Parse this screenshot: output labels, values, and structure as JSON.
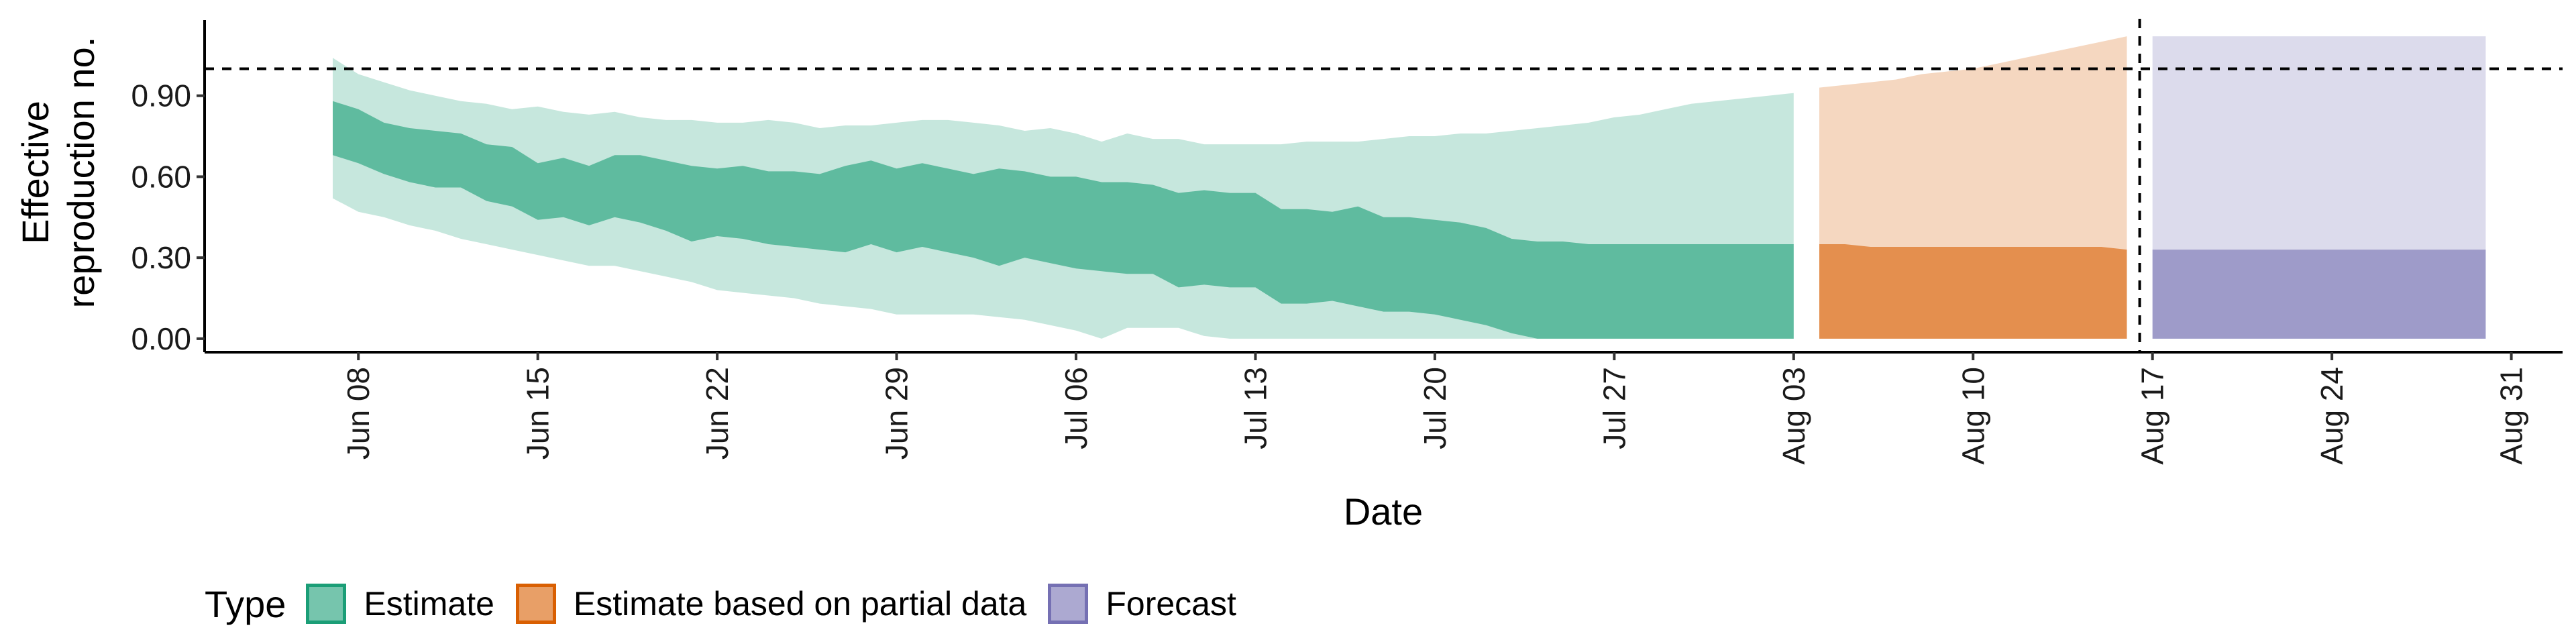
{
  "colors": {
    "estimate": "#1b9e77",
    "partial": "#d95f02",
    "forecast": "#7570b3"
  },
  "chart_data": {
    "type": "area",
    "xlabel": "Date",
    "ylabel": "Effective reproduction no.",
    "xlim": [
      "2020-06-02",
      "2020-09-02"
    ],
    "ylim": [
      -0.05,
      1.18
    ],
    "y_ticks": [
      "0.00",
      "0.30",
      "0.60",
      "0.90"
    ],
    "x_ticks": [
      {
        "date": "2020-06-08",
        "label": "Jun 08"
      },
      {
        "date": "2020-06-15",
        "label": "Jun 15"
      },
      {
        "date": "2020-06-22",
        "label": "Jun 22"
      },
      {
        "date": "2020-06-29",
        "label": "Jun 29"
      },
      {
        "date": "2020-07-06",
        "label": "Jul 06"
      },
      {
        "date": "2020-07-13",
        "label": "Jul 13"
      },
      {
        "date": "2020-07-20",
        "label": "Jul 20"
      },
      {
        "date": "2020-07-27",
        "label": "Jul 27"
      },
      {
        "date": "2020-08-03",
        "label": "Aug 03"
      },
      {
        "date": "2020-08-10",
        "label": "Aug 10"
      },
      {
        "date": "2020-08-17",
        "label": "Aug 17"
      },
      {
        "date": "2020-08-24",
        "label": "Aug 24"
      },
      {
        "date": "2020-08-31",
        "label": "Aug 31"
      }
    ],
    "reference_line_y": 1.0,
    "reference_line_date": "2020-08-16",
    "grid": false,
    "legend_position": "bottom",
    "legend_title": "Type",
    "series": [
      {
        "name": "Estimate",
        "color_key": "estimate",
        "dates": [
          "2020-06-07",
          "2020-06-08",
          "2020-06-09",
          "2020-06-10",
          "2020-06-11",
          "2020-06-12",
          "2020-06-13",
          "2020-06-14",
          "2020-06-15",
          "2020-06-16",
          "2020-06-17",
          "2020-06-18",
          "2020-06-19",
          "2020-06-20",
          "2020-06-21",
          "2020-06-22",
          "2020-06-23",
          "2020-06-24",
          "2020-06-25",
          "2020-06-26",
          "2020-06-27",
          "2020-06-28",
          "2020-06-29",
          "2020-06-30",
          "2020-07-01",
          "2020-07-02",
          "2020-07-03",
          "2020-07-04",
          "2020-07-05",
          "2020-07-06",
          "2020-07-07",
          "2020-07-08",
          "2020-07-09",
          "2020-07-10",
          "2020-07-11",
          "2020-07-12",
          "2020-07-13",
          "2020-07-14",
          "2020-07-15",
          "2020-07-16",
          "2020-07-17",
          "2020-07-18",
          "2020-07-19",
          "2020-07-20",
          "2020-07-21",
          "2020-07-22",
          "2020-07-23",
          "2020-07-24",
          "2020-07-25",
          "2020-07-26",
          "2020-07-27",
          "2020-07-28",
          "2020-07-29",
          "2020-07-30",
          "2020-07-31",
          "2020-08-01",
          "2020-08-02",
          "2020-08-03"
        ],
        "lower_90": [
          0.52,
          0.47,
          0.45,
          0.42,
          0.4,
          0.37,
          0.35,
          0.33,
          0.31,
          0.29,
          0.27,
          0.27,
          0.25,
          0.23,
          0.21,
          0.18,
          0.17,
          0.16,
          0.15,
          0.13,
          0.12,
          0.11,
          0.09,
          0.09,
          0.09,
          0.09,
          0.08,
          0.07,
          0.05,
          0.03,
          0.0,
          0.04,
          0.04,
          0.04,
          0.01,
          0.0,
          0.0,
          0.0,
          0.0,
          0.0,
          0.0,
          0.0,
          0.0,
          0.0,
          0.0,
          0.0,
          0.0,
          0.0,
          0.0,
          0.0,
          0.0,
          0.0,
          0.0,
          0.0,
          0.0,
          0.0,
          0.0,
          0.0
        ],
        "upper_90": [
          1.04,
          0.98,
          0.95,
          0.92,
          0.9,
          0.88,
          0.87,
          0.85,
          0.86,
          0.84,
          0.83,
          0.84,
          0.82,
          0.81,
          0.81,
          0.8,
          0.8,
          0.81,
          0.8,
          0.78,
          0.79,
          0.79,
          0.8,
          0.81,
          0.81,
          0.8,
          0.79,
          0.77,
          0.78,
          0.76,
          0.73,
          0.76,
          0.74,
          0.74,
          0.72,
          0.72,
          0.72,
          0.72,
          0.73,
          0.73,
          0.73,
          0.74,
          0.75,
          0.75,
          0.76,
          0.76,
          0.77,
          0.78,
          0.79,
          0.8,
          0.82,
          0.83,
          0.85,
          0.87,
          0.88,
          0.89,
          0.9,
          0.91
        ],
        "lower_50": [
          0.68,
          0.65,
          0.61,
          0.58,
          0.56,
          0.56,
          0.51,
          0.49,
          0.44,
          0.45,
          0.42,
          0.45,
          0.43,
          0.4,
          0.36,
          0.38,
          0.37,
          0.35,
          0.34,
          0.33,
          0.32,
          0.35,
          0.32,
          0.34,
          0.32,
          0.3,
          0.27,
          0.3,
          0.28,
          0.26,
          0.25,
          0.24,
          0.24,
          0.19,
          0.2,
          0.19,
          0.19,
          0.13,
          0.13,
          0.14,
          0.12,
          0.1,
          0.1,
          0.09,
          0.07,
          0.05,
          0.02,
          0.0,
          0.0,
          0.0,
          0.0,
          0.0,
          0.0,
          0.0,
          0.0,
          0.0,
          0.0,
          0.0
        ],
        "upper_50": [
          0.88,
          0.85,
          0.8,
          0.78,
          0.77,
          0.76,
          0.72,
          0.71,
          0.65,
          0.67,
          0.64,
          0.68,
          0.68,
          0.66,
          0.64,
          0.63,
          0.64,
          0.62,
          0.62,
          0.61,
          0.64,
          0.66,
          0.63,
          0.65,
          0.63,
          0.61,
          0.63,
          0.62,
          0.6,
          0.6,
          0.58,
          0.58,
          0.57,
          0.54,
          0.55,
          0.54,
          0.54,
          0.48,
          0.48,
          0.47,
          0.49,
          0.45,
          0.45,
          0.44,
          0.43,
          0.41,
          0.37,
          0.36,
          0.36,
          0.35,
          0.35,
          0.35,
          0.35,
          0.35,
          0.35,
          0.35,
          0.35,
          0.35
        ]
      },
      {
        "name": "Estimate based on partial data",
        "color_key": "partial",
        "dates": [
          "2020-08-04",
          "2020-08-05",
          "2020-08-06",
          "2020-08-07",
          "2020-08-08",
          "2020-08-09",
          "2020-08-10",
          "2020-08-11",
          "2020-08-12",
          "2020-08-13",
          "2020-08-14",
          "2020-08-15",
          "2020-08-16"
        ],
        "lower_90": [
          0,
          0,
          0,
          0,
          0,
          0,
          0,
          0,
          0,
          0,
          0,
          0,
          0
        ],
        "upper_90": [
          0.93,
          0.94,
          0.95,
          0.96,
          0.98,
          0.99,
          1.0,
          1.02,
          1.04,
          1.06,
          1.08,
          1.1,
          1.12
        ],
        "lower_50": [
          0,
          0,
          0,
          0,
          0,
          0,
          0,
          0,
          0,
          0,
          0,
          0,
          0
        ],
        "upper_50": [
          0.35,
          0.35,
          0.34,
          0.34,
          0.34,
          0.34,
          0.34,
          0.34,
          0.34,
          0.34,
          0.34,
          0.34,
          0.33
        ]
      },
      {
        "name": "Forecast",
        "color_key": "forecast",
        "dates": [
          "2020-08-17",
          "2020-08-30"
        ],
        "lower_90": [
          0,
          0
        ],
        "upper_90": [
          1.12,
          1.12
        ],
        "lower_50": [
          0,
          0
        ],
        "upper_50": [
          0.33,
          0.33
        ]
      }
    ]
  }
}
